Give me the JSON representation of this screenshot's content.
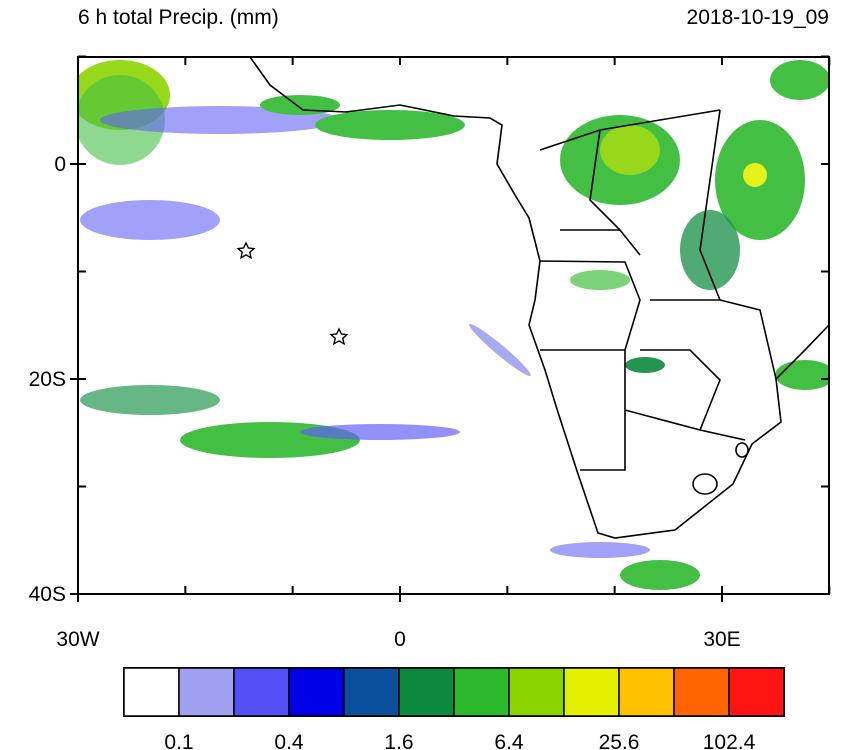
{
  "header": {
    "title": "6 h total Precip. (mm)",
    "valid_time": "2018-10-19_09"
  },
  "axes": {
    "lat_labels": [
      "0",
      "20S",
      "40S"
    ],
    "lon_labels": [
      "30W",
      "0",
      "30E"
    ]
  },
  "colorbar": {
    "colors": [
      "#ffffff",
      "#a0a0f0",
      "#5050f5",
      "#0000e6",
      "#0c4f9c",
      "#0b8a3e",
      "#2eb82e",
      "#8cd400",
      "#e4f000",
      "#ffc000",
      "#ff6400",
      "#ff1414"
    ],
    "labels": [
      "0.1",
      "0.4",
      "1.6",
      "6.4",
      "25.6",
      "102.4"
    ]
  }
}
